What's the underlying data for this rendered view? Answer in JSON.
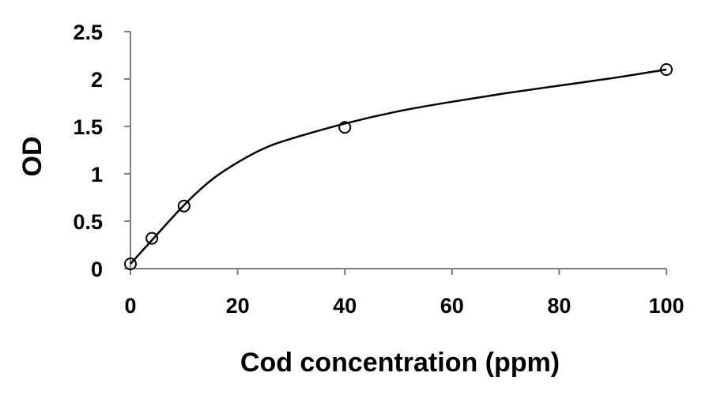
{
  "chart_data": {
    "type": "scatter",
    "xlabel": "Cod concentration (ppm)",
    "ylabel": "OD",
    "xlim": [
      0,
      100
    ],
    "ylim": [
      0,
      2.5
    ],
    "x_ticks": [
      "0",
      "20",
      "40",
      "60",
      "80",
      "100"
    ],
    "y_ticks": [
      "0",
      "0.5",
      "1",
      "1.5",
      "2",
      "2.5"
    ],
    "grid": false,
    "legend": "none",
    "series": [
      {
        "marker": "open-circle",
        "x": [
          0,
          4,
          10,
          40,
          100
        ],
        "y": [
          0.05,
          0.32,
          0.66,
          1.49,
          2.1
        ]
      }
    ],
    "fit_curve": {
      "style": "smooth",
      "x": [
        0,
        4,
        10,
        15,
        20,
        25,
        30,
        40,
        50,
        60,
        70,
        80,
        90,
        100
      ],
      "y": [
        0.05,
        0.3,
        0.67,
        0.93,
        1.12,
        1.27,
        1.37,
        1.53,
        1.66,
        1.76,
        1.85,
        1.93,
        2.01,
        2.1
      ]
    },
    "colors": {
      "axis": "#7f7f7f",
      "line": "#000000",
      "text": "#000000"
    }
  }
}
